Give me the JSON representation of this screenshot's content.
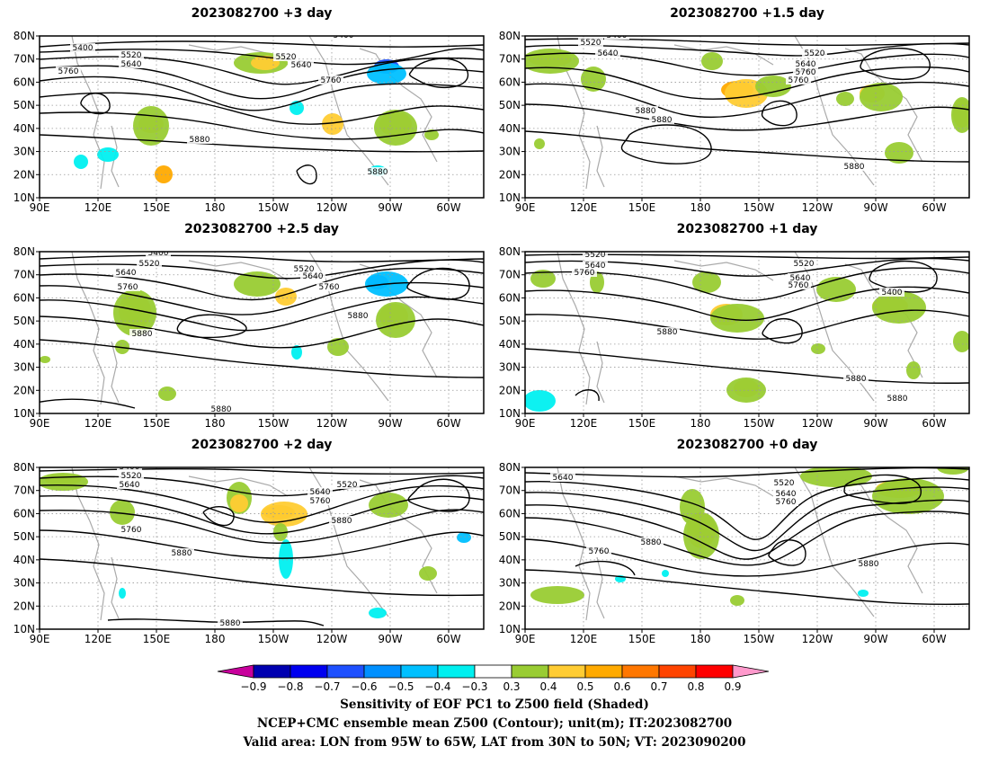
{
  "panels": [
    {
      "title": "2023082700 +3 day",
      "contour_labels": [
        "5400",
        "5520",
        "5640",
        "5760",
        "5880",
        "5520",
        "5640",
        "5760",
        "5400",
        "5880"
      ]
    },
    {
      "title": "2023082700 +1.5 day",
      "contour_labels": [
        "5400",
        "5520",
        "5640",
        "5520",
        "5640",
        "5760",
        "5760",
        "5880",
        "5880",
        "5880"
      ]
    },
    {
      "title": "2023082700 +2.5 day",
      "contour_labels": [
        "5400",
        "5520",
        "5640",
        "5760",
        "5880",
        "5520",
        "5640",
        "5760",
        "5880",
        "5880"
      ]
    },
    {
      "title": "2023082700 +1 day",
      "contour_labels": [
        "5520",
        "5640",
        "5760",
        "5880",
        "5520",
        "5640",
        "5760",
        "5400",
        "5880",
        "5880"
      ]
    },
    {
      "title": "2023082700 +2 day",
      "contour_labels": [
        "5400",
        "5520",
        "5640",
        "5760",
        "5880",
        "5640",
        "5760",
        "5520",
        "5880",
        "5880"
      ]
    },
    {
      "title": "2023082700 +0 day",
      "contour_labels": [
        "5640",
        "5760",
        "5880",
        "5520",
        "5640",
        "5760",
        "5880"
      ]
    }
  ],
  "axes": {
    "lat_ticks": [
      "80N",
      "70N",
      "60N",
      "50N",
      "40N",
      "30N",
      "20N",
      "10N"
    ],
    "lon_ticks": [
      "90E",
      "120E",
      "150E",
      "180",
      "150W",
      "120W",
      "90W",
      "60W"
    ]
  },
  "colorbar": {
    "tick_labels": [
      "−0.9",
      "−0.8",
      "−0.7",
      "−0.6",
      "−0.5",
      "−0.4",
      "−0.3",
      "0.3",
      "0.4",
      "0.5",
      "0.6",
      "0.7",
      "0.8",
      "0.9"
    ],
    "colors": [
      "#c8009c",
      "#0000b0",
      "#0000f0",
      "#1e50ff",
      "#0090ff",
      "#00c0ff",
      "#00f0f0",
      "#ffffff",
      "#99cc33",
      "#ffcc33",
      "#ffaa00",
      "#ff7700",
      "#ff4400",
      "#ff0000",
      "#ff99cc"
    ]
  },
  "captions": [
    "Sensitivity of EOF PC1 to Z500 field (Shaded)",
    "NCEP+CMC ensemble mean Z500 (Contour); unit(m); IT:2023082700",
    "Valid area: LON from 95W to 65W, LAT from 30N to 50N; VT: 2023090200"
  ]
}
